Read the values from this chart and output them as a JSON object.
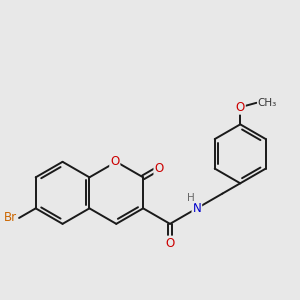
{
  "bg_color": "#e8e8e8",
  "bond_color": "#1a1a1a",
  "bond_width": 1.4,
  "atom_colors": {
    "O": "#cc0000",
    "N": "#0000cc",
    "Br": "#cc6600",
    "H": "#666666",
    "C": "#1a1a1a"
  },
  "font_size_atom": 8.5
}
